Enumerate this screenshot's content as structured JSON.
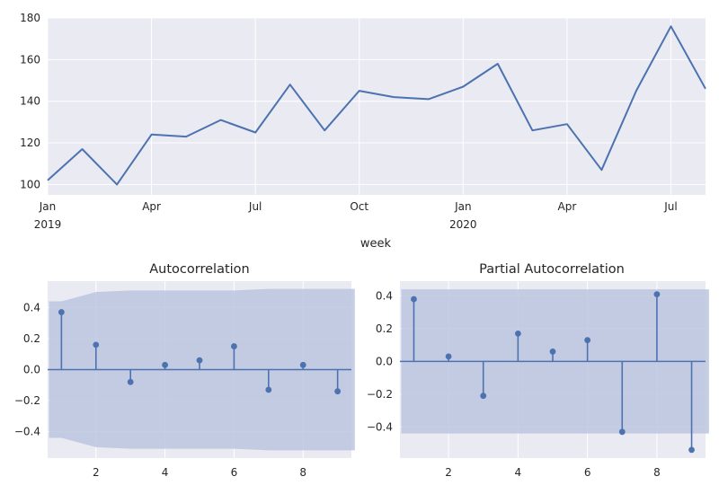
{
  "colors": {
    "background": "#eaeaf2",
    "grid": "#ffffff",
    "series": "#4c72b0",
    "band": "#bcc6df"
  },
  "chart_data": [
    {
      "type": "line",
      "xlabel": "week",
      "x": [
        "2019-01",
        "2019-02",
        "2019-03",
        "2019-04",
        "2019-05",
        "2019-06",
        "2019-07",
        "2019-08",
        "2019-09",
        "2019-10",
        "2019-11",
        "2019-12",
        "2020-01",
        "2020-02",
        "2020-03",
        "2020-04",
        "2020-05",
        "2020-06",
        "2020-07",
        "2020-08"
      ],
      "values": [
        102,
        117,
        100,
        124,
        123,
        131,
        125,
        148,
        126,
        145,
        142,
        141,
        147,
        158,
        126,
        129,
        107,
        145,
        176,
        146
      ],
      "ylim": [
        95,
        180
      ],
      "yticks": [
        "100",
        "120",
        "140",
        "160",
        "180"
      ],
      "xticks": [
        {
          "label": "Jan",
          "sub": "2019"
        },
        {
          "label": "Apr",
          "sub": ""
        },
        {
          "label": "Jul",
          "sub": ""
        },
        {
          "label": "Oct",
          "sub": ""
        },
        {
          "label": "Jan",
          "sub": "2020"
        },
        {
          "label": "Apr",
          "sub": ""
        },
        {
          "label": "Jul",
          "sub": ""
        }
      ],
      "grid": true
    },
    {
      "type": "stem",
      "title": "Autocorrelation",
      "lags": [
        1,
        2,
        3,
        4,
        5,
        6,
        7,
        8,
        9
      ],
      "values": [
        0.37,
        0.16,
        -0.08,
        0.03,
        0.06,
        0.15,
        -0.13,
        0.03,
        -0.14
      ],
      "confidence_upper": [
        0.44,
        0.5,
        0.51,
        0.51,
        0.51,
        0.51,
        0.52,
        0.52,
        0.52
      ],
      "xlim": [
        0.6,
        9.4
      ],
      "ylim": [
        -0.57,
        0.57
      ],
      "yticks": [
        "−0.4",
        "−0.2",
        "0.0",
        "0.2",
        "0.4"
      ],
      "xticks": [
        "2",
        "4",
        "6",
        "8"
      ],
      "grid": true
    },
    {
      "type": "stem",
      "title": "Partial Autocorrelation",
      "lags": [
        1,
        2,
        3,
        4,
        5,
        6,
        7,
        8,
        9
      ],
      "values": [
        0.38,
        0.03,
        -0.21,
        0.17,
        0.06,
        0.13,
        -0.43,
        0.41,
        -0.54
      ],
      "confidence_upper": [
        0.44,
        0.44,
        0.44,
        0.44,
        0.44,
        0.44,
        0.44,
        0.44,
        0.44
      ],
      "xlim": [
        0.6,
        9.4
      ],
      "ylim": [
        -0.59,
        0.49
      ],
      "yticks": [
        "−0.4",
        "−0.2",
        "0.0",
        "0.2",
        "0.4"
      ],
      "xticks": [
        "2",
        "4",
        "6",
        "8"
      ],
      "grid": true
    }
  ]
}
